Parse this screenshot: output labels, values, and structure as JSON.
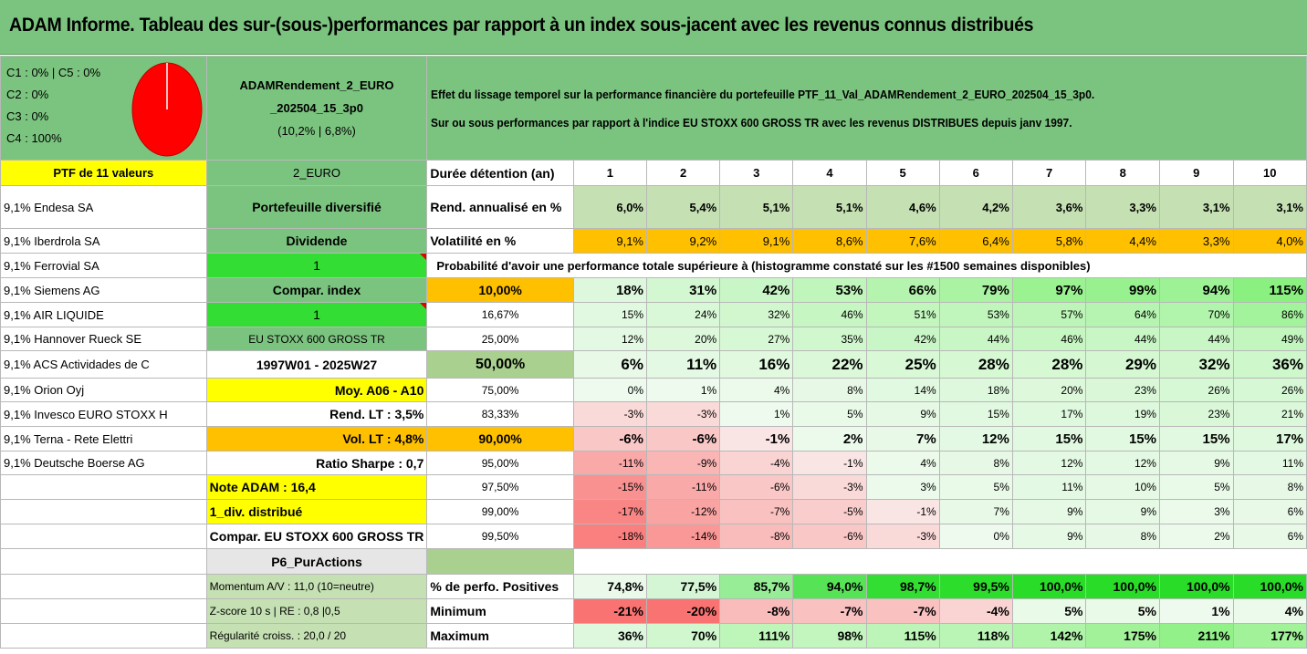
{
  "title": "ADAM Informe. Tableau des sur-(sous-)performances par rapport à un index sous-jacent avec les revenus connus distribués",
  "pie": {
    "labels": [
      "C1 : 0% | C5 : 0%",
      "C2 : 0%",
      "C3 : 0%",
      "C4 : 100%"
    ],
    "color": "#ff0000"
  },
  "portfolio": {
    "name_line1": "ADAMRendement_2_EURO",
    "name_line2": "_202504_15_3p0",
    "name_line3": "(10,2% | 6,8%)"
  },
  "description": {
    "line1": "Effet du lissage temporel sur la performance financière du portefeuille PTF_11_Val_ADAMRendement_2_EURO_202504_15_3p0.",
    "line2": "Sur ou sous performances par rapport à l'indice EU STOXX 600 GROSS TR avec les revenus DISTRIBUES depuis janv 1997."
  },
  "header_row": {
    "ptf": "PTF de 11 valeurs",
    "currency": "2_EURO",
    "label": "Durée détention (an)",
    "years": [
      "1",
      "2",
      "3",
      "4",
      "5",
      "6",
      "7",
      "8",
      "9",
      "10"
    ]
  },
  "rend_row": {
    "label": "Rend. annualisé en %",
    "values": [
      "6,0%",
      "5,4%",
      "5,1%",
      "5,1%",
      "4,6%",
      "4,2%",
      "3,6%",
      "3,3%",
      "3,1%",
      "3,1%"
    ]
  },
  "vol_row": {
    "label": "Volatilité en %",
    "values": [
      "9,1%",
      "9,2%",
      "9,1%",
      "8,6%",
      "7,6%",
      "6,4%",
      "5,8%",
      "4,4%",
      "3,3%",
      "4,0%"
    ]
  },
  "prob_title": "Probabilité d'avoir une performance totale supérieure à (histogramme constaté sur les #1500 semaines disponibles)",
  "stocks": [
    "9,1% Endesa SA",
    "9,1% Iberdrola SA",
    "9,1% Ferrovial SA",
    "9,1% Siemens AG",
    "9,1% AIR LIQUIDE",
    "9,1% Hannover Rueck SE",
    "9,1% ACS Actividades de C",
    "9,1% Orion Oyj",
    "9,1% Invesco EURO STOXX H",
    "9,1% Terna - Rete Elettri",
    "9,1% Deutsche Boerse AG"
  ],
  "side": {
    "diversified": "Portefeuille diversifié",
    "dividend_label": "Dividende",
    "dividend_value": "1",
    "compar_label": "Compar. index",
    "compar_value": "1",
    "index_name": "EU STOXX 600 GROSS TR",
    "period": "1997W01 - 2025W27",
    "moy": "Moy. A06 - A10",
    "rend_lt": "Rend. LT : 3,5%",
    "vol_lt": "Vol. LT : 4,8%",
    "sharpe": "Ratio Sharpe : 0,7",
    "note": "Note ADAM : 16,4",
    "div_distrib": "1_div. distribué",
    "compar_full": "Compar. EU STOXX 600 GROSS TR",
    "p6": "P6_PurActions",
    "momentum": "Momentum A/V : 11,0 (10=neutre)",
    "zscore": "Z-score 10 s | RE : 0,8 |0,5",
    "regularite": "Régularité croiss. : 20,0 / 20"
  },
  "quantile_rows": [
    {
      "q": "10,00%",
      "values": [
        "18%",
        "31%",
        "42%",
        "53%",
        "66%",
        "79%",
        "97%",
        "99%",
        "94%",
        "115%"
      ]
    },
    {
      "q": "16,67%",
      "values": [
        "15%",
        "24%",
        "32%",
        "46%",
        "51%",
        "53%",
        "57%",
        "64%",
        "70%",
        "86%"
      ]
    },
    {
      "q": "25,00%",
      "values": [
        "12%",
        "20%",
        "27%",
        "35%",
        "42%",
        "44%",
        "46%",
        "44%",
        "44%",
        "49%"
      ]
    },
    {
      "q": "50,00%",
      "values": [
        "6%",
        "11%",
        "16%",
        "22%",
        "25%",
        "28%",
        "28%",
        "29%",
        "32%",
        "36%"
      ]
    },
    {
      "q": "75,00%",
      "values": [
        "0%",
        "1%",
        "4%",
        "8%",
        "14%",
        "18%",
        "20%",
        "23%",
        "26%",
        "26%"
      ]
    },
    {
      "q": "83,33%",
      "values": [
        "-3%",
        "-3%",
        "1%",
        "5%",
        "9%",
        "15%",
        "17%",
        "19%",
        "23%",
        "21%"
      ]
    },
    {
      "q": "90,00%",
      "values": [
        "-6%",
        "-6%",
        "-1%",
        "2%",
        "7%",
        "12%",
        "15%",
        "15%",
        "15%",
        "17%"
      ]
    },
    {
      "q": "95,00%",
      "values": [
        "-11%",
        "-9%",
        "-4%",
        "-1%",
        "4%",
        "8%",
        "12%",
        "12%",
        "9%",
        "11%"
      ]
    },
    {
      "q": "97,50%",
      "values": [
        "-15%",
        "-11%",
        "-6%",
        "-3%",
        "3%",
        "5%",
        "11%",
        "10%",
        "5%",
        "8%"
      ]
    },
    {
      "q": "99,00%",
      "values": [
        "-17%",
        "-12%",
        "-7%",
        "-5%",
        "-1%",
        "7%",
        "9%",
        "9%",
        "3%",
        "6%"
      ]
    },
    {
      "q": "99,50%",
      "values": [
        "-18%",
        "-14%",
        "-8%",
        "-6%",
        "-3%",
        "0%",
        "9%",
        "8%",
        "2%",
        "6%"
      ]
    }
  ],
  "stats_rows": [
    {
      "label": "% de perfo. Positives",
      "values": [
        "74,8%",
        "77,5%",
        "85,7%",
        "94,0%",
        "98,7%",
        "99,5%",
        "100,0%",
        "100,0%",
        "100,0%",
        "100,0%"
      ]
    },
    {
      "label": "Minimum",
      "values": [
        "-21%",
        "-20%",
        "-8%",
        "-7%",
        "-7%",
        "-4%",
        "5%",
        "5%",
        "1%",
        "4%"
      ]
    },
    {
      "label": "Maximum",
      "values": [
        "36%",
        "70%",
        "111%",
        "98%",
        "115%",
        "118%",
        "142%",
        "175%",
        "211%",
        "177%"
      ]
    }
  ]
}
